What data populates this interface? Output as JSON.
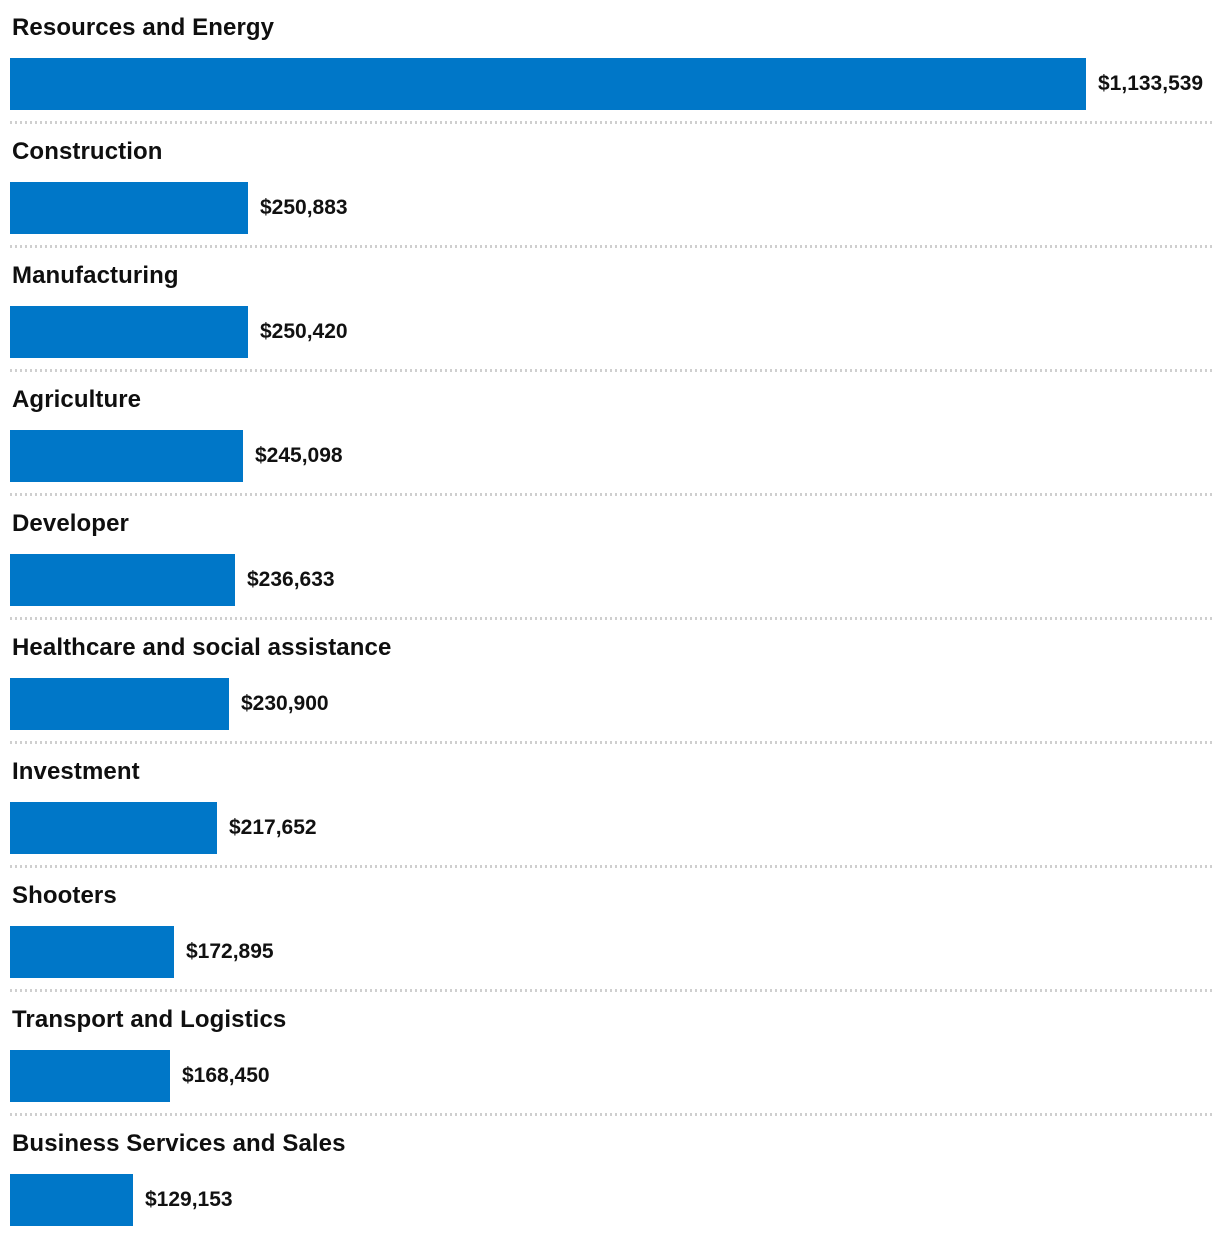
{
  "chart_data": {
    "type": "bar",
    "orientation": "horizontal",
    "title": "",
    "xlabel": "",
    "ylabel": "",
    "xlim": [
      0,
      1133539
    ],
    "grid": false,
    "legend": "none",
    "bar_color": "#0077C8",
    "label_color": "#0f0f0f",
    "value_color": "#111111",
    "separator_color": "#cfcfcf",
    "categories": [
      "Resources and Energy",
      "Construction",
      "Manufacturing",
      "Agriculture",
      "Developer",
      "Healthcare and social assistance",
      "Investment",
      "Shooters",
      "Transport and Logistics",
      "Business Services and Sales"
    ],
    "values": [
      1133539,
      250883,
      250420,
      245098,
      236633,
      230900,
      217652,
      172895,
      168450,
      129153
    ],
    "value_labels": [
      "$1,133,539",
      "$250,883",
      "$250,420",
      "$245,098",
      "$236,633",
      "$230,900",
      "$217,652",
      "$172,895",
      "$168,450",
      "$129,153"
    ]
  }
}
